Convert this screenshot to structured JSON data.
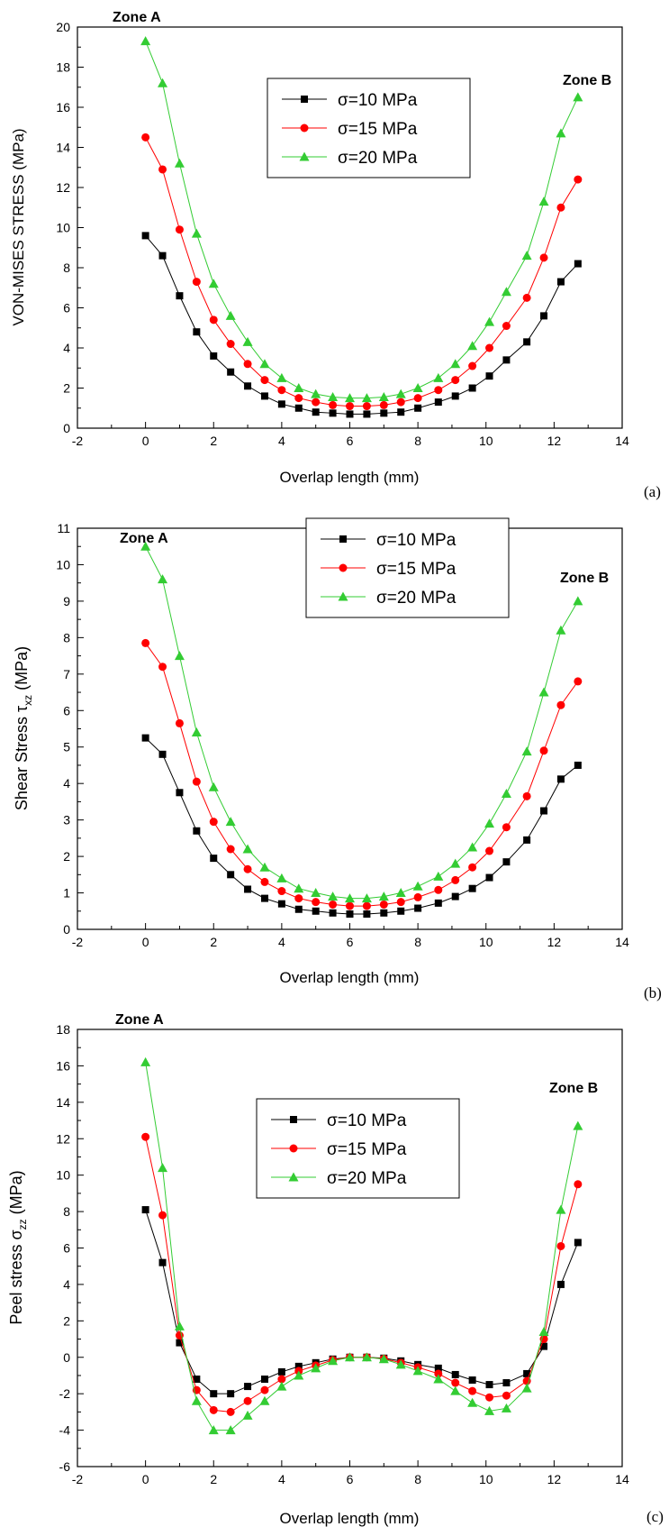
{
  "colors": {
    "s10": "#000000",
    "s15": "#ff0000",
    "s20": "#33cc33"
  },
  "chart_data": [
    {
      "type": "line",
      "panel": "(a)",
      "xlabel": "Overlap length (mm)",
      "ylabel": "VON-MISES STRESS (MPa)",
      "xlim": [
        -2,
        14
      ],
      "ylim": [
        0,
        20
      ],
      "xticks": [
        -2,
        0,
        2,
        4,
        6,
        8,
        10,
        12,
        14
      ],
      "yticks": [
        0,
        2,
        4,
        6,
        8,
        10,
        12,
        14,
        16,
        18,
        20
      ],
      "annotations": [
        "Zone A",
        "Zone B"
      ],
      "legend_position": "top-center",
      "x": [
        0,
        0.5,
        1.0,
        1.5,
        2.0,
        2.5,
        3.0,
        3.5,
        4.0,
        4.5,
        5.0,
        5.5,
        6.0,
        6.5,
        7.0,
        7.5,
        8.0,
        8.6,
        9.1,
        9.6,
        10.1,
        10.6,
        11.2,
        11.7,
        12.2,
        12.7
      ],
      "series": [
        {
          "name": "σ=10 MPa",
          "color_key": "s10",
          "marker": "square",
          "values": [
            9.6,
            8.6,
            6.6,
            4.8,
            3.6,
            2.8,
            2.1,
            1.6,
            1.2,
            1.0,
            0.8,
            0.75,
            0.7,
            0.7,
            0.75,
            0.8,
            1.0,
            1.3,
            1.6,
            2.0,
            2.6,
            3.4,
            4.3,
            5.6,
            7.3,
            8.2
          ]
        },
        {
          "name": "σ=15 MPa",
          "color_key": "s15",
          "marker": "circle",
          "values": [
            14.5,
            12.9,
            9.9,
            7.3,
            5.4,
            4.2,
            3.2,
            2.4,
            1.9,
            1.5,
            1.3,
            1.15,
            1.1,
            1.1,
            1.15,
            1.3,
            1.5,
            1.9,
            2.4,
            3.1,
            4.0,
            5.1,
            6.5,
            8.5,
            11.0,
            12.4
          ]
        },
        {
          "name": "σ=20 MPa",
          "color_key": "s20",
          "marker": "triangle",
          "values": [
            19.3,
            17.2,
            13.2,
            9.7,
            7.2,
            5.6,
            4.3,
            3.2,
            2.5,
            2.0,
            1.7,
            1.55,
            1.5,
            1.5,
            1.55,
            1.7,
            2.0,
            2.5,
            3.2,
            4.1,
            5.3,
            6.8,
            8.6,
            11.3,
            14.7,
            16.5
          ]
        }
      ]
    },
    {
      "type": "line",
      "panel": "(b)",
      "xlabel": "Overlap length (mm)",
      "ylabel_main": "Shear Stress τ",
      "ylabel_sub": "xz",
      "ylabel_unit": " (MPa)",
      "xlim": [
        -2,
        14
      ],
      "ylim": [
        0,
        11
      ],
      "xticks": [
        -2,
        0,
        2,
        4,
        6,
        8,
        10,
        12,
        14
      ],
      "yticks": [
        0,
        1,
        2,
        3,
        4,
        5,
        6,
        7,
        8,
        9,
        10,
        11
      ],
      "annotations": [
        "Zone A",
        "Zone B"
      ],
      "legend_position": "top-center",
      "x": [
        0,
        0.5,
        1.0,
        1.5,
        2.0,
        2.5,
        3.0,
        3.5,
        4.0,
        4.5,
        5.0,
        5.5,
        6.0,
        6.5,
        7.0,
        7.5,
        8.0,
        8.6,
        9.1,
        9.6,
        10.1,
        10.6,
        11.2,
        11.7,
        12.2,
        12.7
      ],
      "series": [
        {
          "name": "σ=10 MPa",
          "color_key": "s10",
          "marker": "square",
          "values": [
            5.25,
            4.8,
            3.75,
            2.7,
            1.95,
            1.5,
            1.1,
            0.85,
            0.7,
            0.55,
            0.5,
            0.45,
            0.42,
            0.42,
            0.45,
            0.5,
            0.58,
            0.72,
            0.9,
            1.12,
            1.42,
            1.85,
            2.45,
            3.25,
            4.12,
            4.5
          ]
        },
        {
          "name": "σ=15 MPa",
          "color_key": "s15",
          "marker": "circle",
          "values": [
            7.85,
            7.2,
            5.65,
            4.05,
            2.95,
            2.2,
            1.65,
            1.3,
            1.05,
            0.85,
            0.75,
            0.68,
            0.64,
            0.64,
            0.68,
            0.75,
            0.88,
            1.08,
            1.35,
            1.7,
            2.15,
            2.8,
            3.65,
            4.9,
            6.15,
            6.8
          ]
        },
        {
          "name": "σ=20 MPa",
          "color_key": "s20",
          "marker": "triangle",
          "values": [
            10.5,
            9.6,
            7.5,
            5.4,
            3.9,
            2.95,
            2.2,
            1.7,
            1.4,
            1.12,
            1.0,
            0.9,
            0.85,
            0.85,
            0.9,
            1.0,
            1.18,
            1.45,
            1.8,
            2.25,
            2.9,
            3.72,
            4.88,
            6.5,
            8.2,
            9.0
          ]
        }
      ]
    },
    {
      "type": "line",
      "panel": "(c)",
      "xlabel": "Overlap length (mm)",
      "ylabel_main": "Peel stress σ",
      "ylabel_sub": "zz",
      "ylabel_unit": " (MPa)",
      "xlim": [
        -2,
        14
      ],
      "ylim": [
        -6,
        18
      ],
      "xticks": [
        -2,
        0,
        2,
        4,
        6,
        8,
        10,
        12,
        14
      ],
      "yticks": [
        -6,
        -4,
        -2,
        0,
        2,
        4,
        6,
        8,
        10,
        12,
        14,
        16,
        18
      ],
      "annotations": [
        "Zone A",
        "Zone B"
      ],
      "legend_position": "center",
      "x": [
        0,
        0.5,
        1.0,
        1.5,
        2.0,
        2.5,
        3.0,
        3.5,
        4.0,
        4.5,
        5.0,
        5.5,
        6.0,
        6.5,
        7.0,
        7.5,
        8.0,
        8.6,
        9.1,
        9.6,
        10.1,
        10.6,
        11.2,
        11.7,
        12.2,
        12.7
      ],
      "series": [
        {
          "name": "σ=10 MPa",
          "color_key": "s10",
          "marker": "square",
          "values": [
            8.1,
            5.2,
            0.8,
            -1.2,
            -2.0,
            -2.0,
            -1.6,
            -1.2,
            -0.8,
            -0.5,
            -0.3,
            -0.1,
            0.0,
            0.0,
            -0.05,
            -0.2,
            -0.4,
            -0.6,
            -0.95,
            -1.25,
            -1.5,
            -1.4,
            -0.9,
            0.6,
            4.0,
            6.3
          ]
        },
        {
          "name": "σ=15 MPa",
          "color_key": "s15",
          "marker": "circle",
          "values": [
            12.1,
            7.8,
            1.2,
            -1.8,
            -2.9,
            -3.0,
            -2.4,
            -1.8,
            -1.2,
            -0.75,
            -0.45,
            -0.15,
            0.0,
            0.0,
            -0.08,
            -0.3,
            -0.55,
            -0.9,
            -1.4,
            -1.85,
            -2.2,
            -2.1,
            -1.3,
            1.0,
            6.1,
            9.5
          ]
        },
        {
          "name": "σ=20 MPa",
          "color_key": "s20",
          "marker": "triangle",
          "values": [
            16.2,
            10.4,
            1.7,
            -2.4,
            -4.0,
            -4.0,
            -3.2,
            -2.4,
            -1.6,
            -1.0,
            -0.6,
            -0.2,
            0.0,
            0.0,
            -0.1,
            -0.4,
            -0.75,
            -1.2,
            -1.85,
            -2.5,
            -2.95,
            -2.8,
            -1.7,
            1.4,
            8.1,
            12.7
          ]
        }
      ]
    }
  ]
}
